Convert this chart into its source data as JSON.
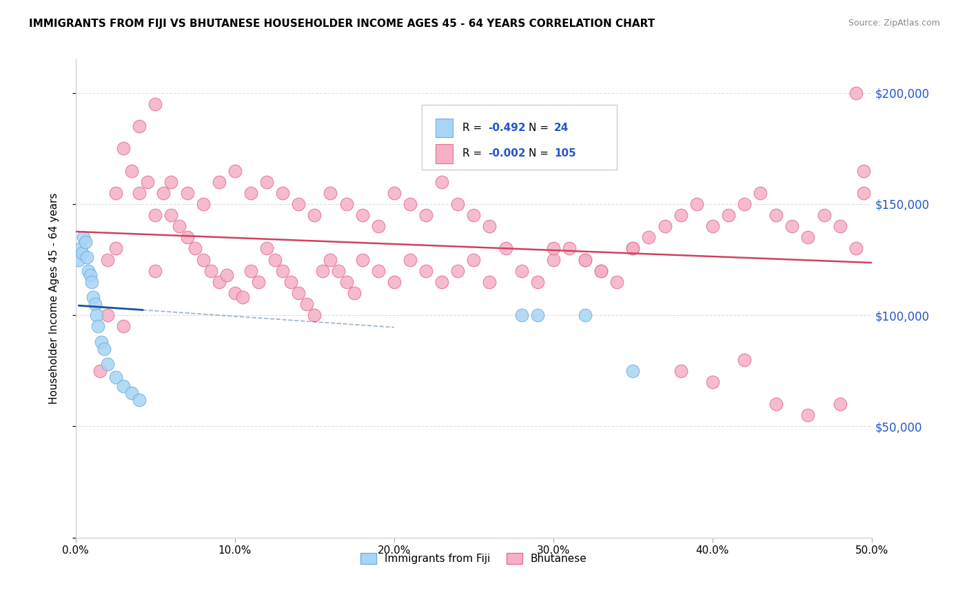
{
  "title": "IMMIGRANTS FROM FIJI VS BHUTANESE HOUSEHOLDER INCOME AGES 45 - 64 YEARS CORRELATION CHART",
  "source": "Source: ZipAtlas.com",
  "ylabel": "Householder Income Ages 45 - 64 years",
  "legend_fiji": "Immigrants from Fiji",
  "legend_bhutanese": "Bhutanese",
  "fiji_R": "-0.492",
  "fiji_N": "24",
  "bhutanese_R": "-0.002",
  "bhutanese_N": "105",
  "fiji_color": "#a8d4f5",
  "fiji_edge": "#70aee0",
  "bhutanese_color": "#f5b0c5",
  "bhutanese_edge": "#e07090",
  "fiji_trend_color": "#1a50a0",
  "bhutanese_trend_color": "#d04060",
  "xmin": 0.0,
  "xmax": 0.5,
  "ymin": 0,
  "ymax": 215000,
  "yticks": [
    0,
    50000,
    100000,
    150000,
    200000
  ],
  "ytick_labels": [
    "",
    "$50,000",
    "$100,000",
    "$150,000",
    "$200,000"
  ],
  "xticks": [
    0.0,
    0.1,
    0.2,
    0.3,
    0.4,
    0.5
  ],
  "xtick_labels": [
    "0.0%",
    "10.0%",
    "20.0%",
    "30.0%",
    "40.0%",
    "50.0%"
  ],
  "fiji_x": [
    0.002,
    0.003,
    0.004,
    0.005,
    0.006,
    0.007,
    0.008,
    0.009,
    0.01,
    0.011,
    0.012,
    0.013,
    0.014,
    0.016,
    0.018,
    0.02,
    0.025,
    0.03,
    0.035,
    0.04,
    0.28,
    0.29,
    0.32,
    0.35
  ],
  "fiji_y": [
    125000,
    130000,
    128000,
    135000,
    133000,
    126000,
    120000,
    118000,
    115000,
    108000,
    105000,
    100000,
    95000,
    88000,
    85000,
    78000,
    72000,
    68000,
    65000,
    62000,
    100000,
    100000,
    100000,
    75000
  ],
  "bhutanese_x": [
    0.02,
    0.025,
    0.03,
    0.035,
    0.04,
    0.045,
    0.05,
    0.055,
    0.06,
    0.065,
    0.07,
    0.075,
    0.08,
    0.085,
    0.09,
    0.095,
    0.1,
    0.105,
    0.11,
    0.115,
    0.12,
    0.125,
    0.13,
    0.135,
    0.14,
    0.145,
    0.15,
    0.155,
    0.16,
    0.165,
    0.17,
    0.175,
    0.18,
    0.19,
    0.2,
    0.21,
    0.22,
    0.23,
    0.24,
    0.25,
    0.26,
    0.27,
    0.28,
    0.29,
    0.3,
    0.31,
    0.32,
    0.33,
    0.34,
    0.35,
    0.36,
    0.37,
    0.38,
    0.39,
    0.4,
    0.41,
    0.42,
    0.43,
    0.44,
    0.45,
    0.46,
    0.47,
    0.48,
    0.49,
    0.495,
    0.025,
    0.04,
    0.05,
    0.06,
    0.07,
    0.08,
    0.09,
    0.1,
    0.11,
    0.12,
    0.13,
    0.14,
    0.15,
    0.16,
    0.17,
    0.18,
    0.19,
    0.2,
    0.21,
    0.22,
    0.23,
    0.24,
    0.25,
    0.26,
    0.3,
    0.32,
    0.33,
    0.35,
    0.38,
    0.4,
    0.42,
    0.44,
    0.46,
    0.48,
    0.49,
    0.495,
    0.015,
    0.02,
    0.03,
    0.05
  ],
  "bhutanese_y": [
    125000,
    130000,
    175000,
    165000,
    155000,
    160000,
    145000,
    155000,
    145000,
    140000,
    135000,
    130000,
    125000,
    120000,
    115000,
    118000,
    110000,
    108000,
    120000,
    115000,
    130000,
    125000,
    120000,
    115000,
    110000,
    105000,
    100000,
    120000,
    125000,
    120000,
    115000,
    110000,
    125000,
    120000,
    115000,
    125000,
    120000,
    115000,
    120000,
    125000,
    115000,
    130000,
    120000,
    115000,
    125000,
    130000,
    125000,
    120000,
    115000,
    130000,
    135000,
    140000,
    145000,
    150000,
    140000,
    145000,
    150000,
    155000,
    145000,
    140000,
    135000,
    145000,
    140000,
    200000,
    155000,
    155000,
    185000,
    195000,
    160000,
    155000,
    150000,
    160000,
    165000,
    155000,
    160000,
    155000,
    150000,
    145000,
    155000,
    150000,
    145000,
    140000,
    155000,
    150000,
    145000,
    160000,
    150000,
    145000,
    140000,
    130000,
    125000,
    120000,
    130000,
    75000,
    70000,
    80000,
    60000,
    55000,
    60000,
    130000,
    165000,
    75000,
    100000,
    95000,
    120000
  ]
}
